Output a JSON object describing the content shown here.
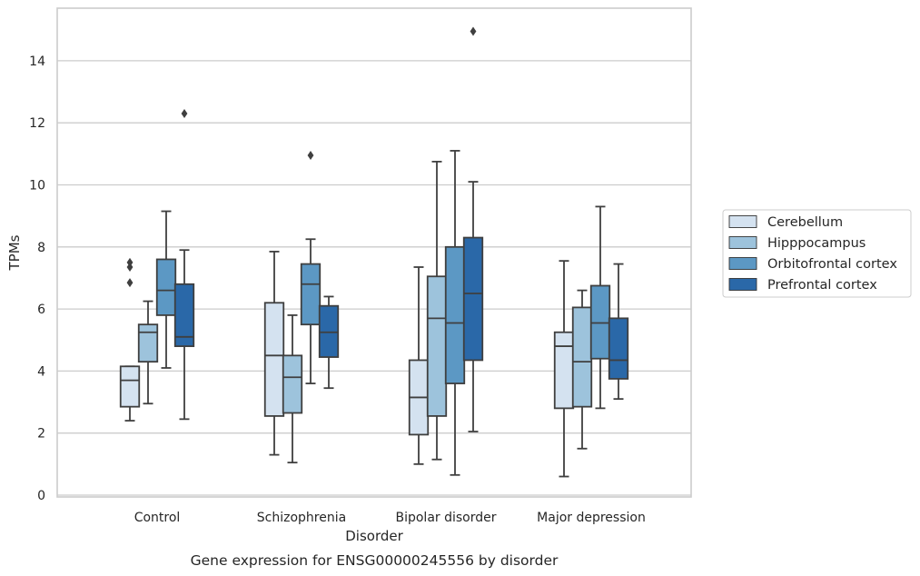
{
  "chart_data": {
    "type": "boxplot",
    "xlabel": "Disorder",
    "ylabel": "TPMs",
    "caption": "Gene expression for ENSG00000245556 by disorder",
    "ylim": [
      -0.1,
      15.6
    ],
    "yticks": [
      0,
      2,
      4,
      6,
      8,
      10,
      12,
      14
    ],
    "grid": "horizontal",
    "legend_position": "right",
    "categories": [
      "Control",
      "Schizophrenia",
      "Bipolar disorder",
      "Major depression"
    ],
    "series": [
      {
        "name": "Cerebellum",
        "color": "#d4e2f0",
        "boxes": [
          {
            "whislo": 2.4,
            "q1": 2.85,
            "med": 3.7,
            "q3": 4.15,
            "whishi": 4.15,
            "fliers": [
              6.85,
              7.35,
              7.5
            ]
          },
          {
            "whislo": 1.3,
            "q1": 2.55,
            "med": 4.5,
            "q3": 6.2,
            "whishi": 7.85,
            "fliers": []
          },
          {
            "whislo": 1.0,
            "q1": 1.95,
            "med": 3.15,
            "q3": 4.35,
            "whishi": 7.35,
            "fliers": []
          },
          {
            "whislo": 0.6,
            "q1": 2.8,
            "med": 4.8,
            "q3": 5.25,
            "whishi": 7.55,
            "fliers": []
          }
        ]
      },
      {
        "name": "Hipppocampus",
        "color": "#9dc3dc",
        "boxes": [
          {
            "whislo": 2.95,
            "q1": 4.3,
            "med": 5.25,
            "q3": 5.5,
            "whishi": 6.25,
            "fliers": []
          },
          {
            "whislo": 1.05,
            "q1": 2.65,
            "med": 3.8,
            "q3": 4.5,
            "whishi": 5.8,
            "fliers": []
          },
          {
            "whislo": 1.15,
            "q1": 2.55,
            "med": 5.7,
            "q3": 7.05,
            "whishi": 10.75,
            "fliers": []
          },
          {
            "whislo": 1.5,
            "q1": 2.85,
            "med": 4.3,
            "q3": 6.05,
            "whishi": 6.6,
            "fliers": []
          }
        ]
      },
      {
        "name": "Orbitofrontal cortex",
        "color": "#5c98c4",
        "boxes": [
          {
            "whislo": 4.1,
            "q1": 5.8,
            "med": 6.6,
            "q3": 7.6,
            "whishi": 9.15,
            "fliers": []
          },
          {
            "whislo": 3.6,
            "q1": 5.5,
            "med": 6.8,
            "q3": 7.45,
            "whishi": 8.25,
            "fliers": [
              10.95
            ]
          },
          {
            "whislo": 0.65,
            "q1": 3.6,
            "med": 5.55,
            "q3": 8.0,
            "whishi": 11.1,
            "fliers": []
          },
          {
            "whislo": 2.8,
            "q1": 4.4,
            "med": 5.55,
            "q3": 6.75,
            "whishi": 9.3,
            "fliers": []
          }
        ]
      },
      {
        "name": "Prefrontal cortex",
        "color": "#2a68a8",
        "boxes": [
          {
            "whislo": 2.45,
            "q1": 4.8,
            "med": 5.1,
            "q3": 6.8,
            "whishi": 7.9,
            "fliers": [
              12.3
            ]
          },
          {
            "whislo": 3.45,
            "q1": 4.45,
            "med": 5.25,
            "q3": 6.1,
            "whishi": 6.4,
            "fliers": []
          },
          {
            "whislo": 2.05,
            "q1": 4.35,
            "med": 6.5,
            "q3": 8.3,
            "whishi": 10.1,
            "fliers": [
              14.95
            ]
          },
          {
            "whislo": 3.1,
            "q1": 3.75,
            "med": 4.35,
            "q3": 5.7,
            "whishi": 7.45,
            "fliers": []
          }
        ]
      }
    ]
  }
}
